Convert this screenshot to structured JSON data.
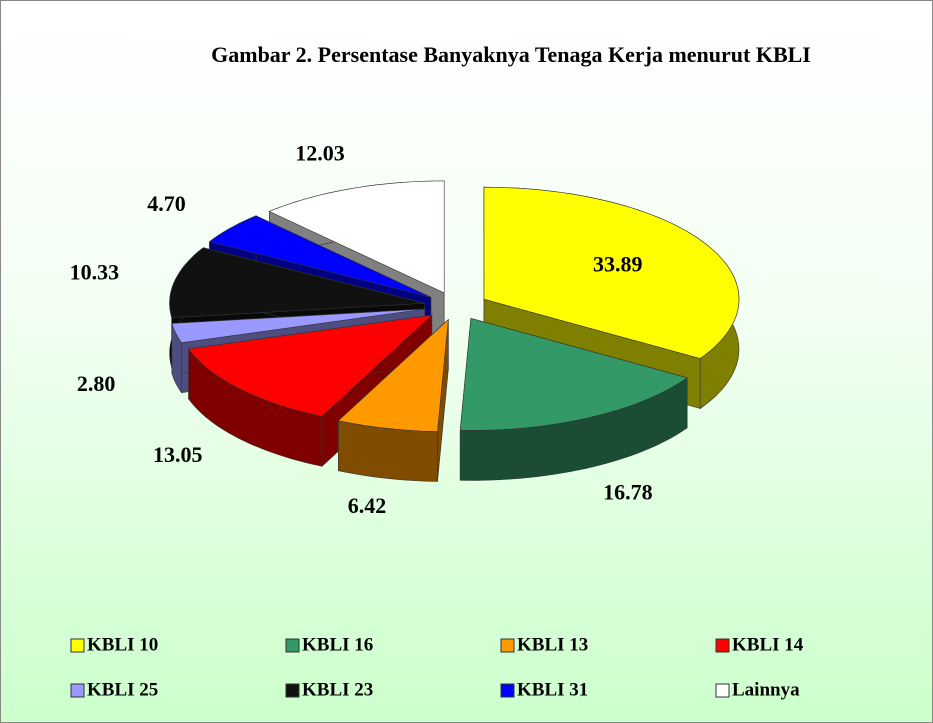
{
  "chart_data": {
    "type": "pie3d",
    "title": "Gambar 2. Persentase Banyaknya Tenaga Kerja menurut KBLI",
    "categories": [
      "KBLI 10",
      "KBLI 16",
      "KBLI 13",
      "KBLI 14",
      "KBLI 25",
      "KBLI 23",
      "KBLI 31",
      "Lainnya"
    ],
    "values": [
      33.89,
      16.78,
      6.42,
      13.05,
      2.8,
      10.33,
      4.7,
      12.03
    ],
    "value_labels": [
      "33.89",
      "16.78",
      "6.42",
      "13.05",
      "2.80",
      "10.33",
      "4.70",
      "12.03"
    ],
    "colors": [
      "#ffff00",
      "#339966",
      "#ff9900",
      "#ff0000",
      "#9999ff",
      "#111111",
      "#0000ff",
      "#ffffff"
    ],
    "legend": "bottom"
  }
}
